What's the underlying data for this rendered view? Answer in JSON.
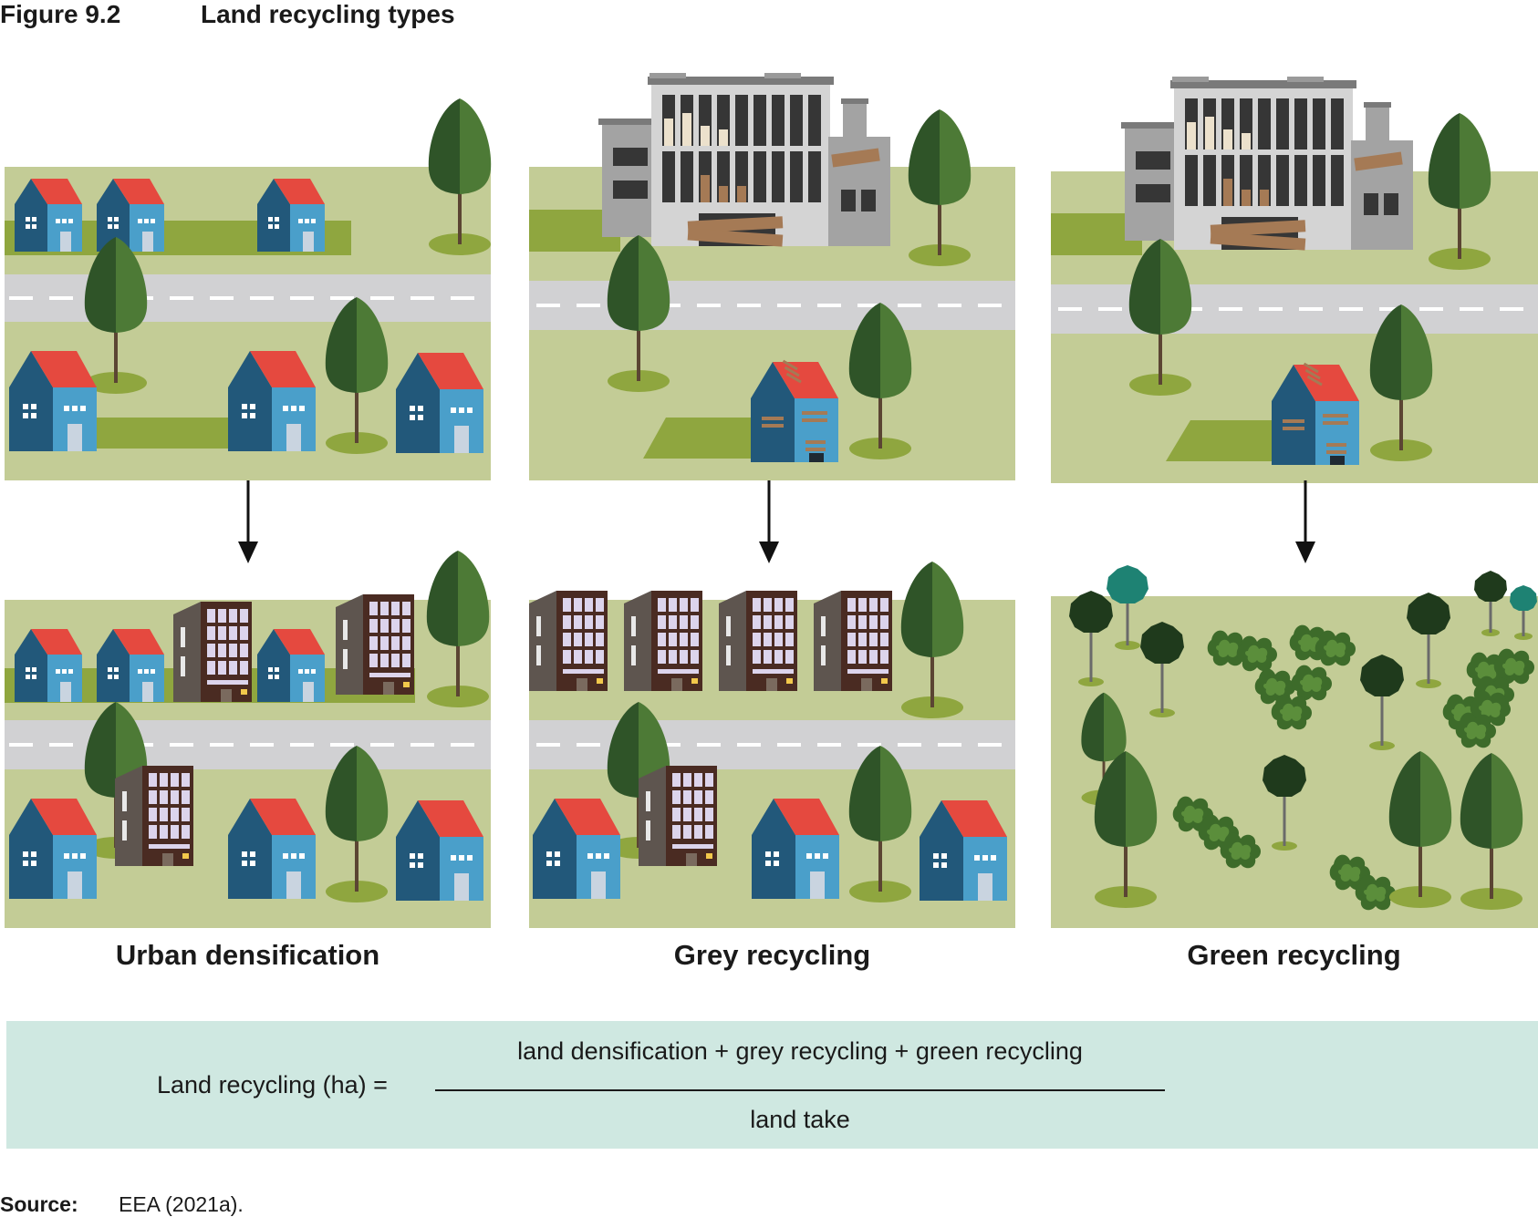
{
  "figure": {
    "number": "Figure 9.2",
    "title": "Land recycling types"
  },
  "panels": [
    {
      "label": "Urban densification"
    },
    {
      "label": "Grey recycling"
    },
    {
      "label": "Green recycling"
    }
  ],
  "formula": {
    "lhs": "Land recycling (ha) =",
    "numerator": "land densification + grey recycling + green recycling",
    "denominator": "land take"
  },
  "source": {
    "label": "Source:",
    "text": "EEA (2021a)."
  },
  "colors": {
    "grass": "#c3cc96",
    "strip": "#8fa63f",
    "road": "#d1d1d3",
    "house_dark": "#22587a",
    "house_light": "#4a9fca",
    "roof": "#e5493f",
    "tree_dark": "#2f5428",
    "tree_light": "#4d7a36",
    "formula_bg": "#cfe8e1"
  }
}
